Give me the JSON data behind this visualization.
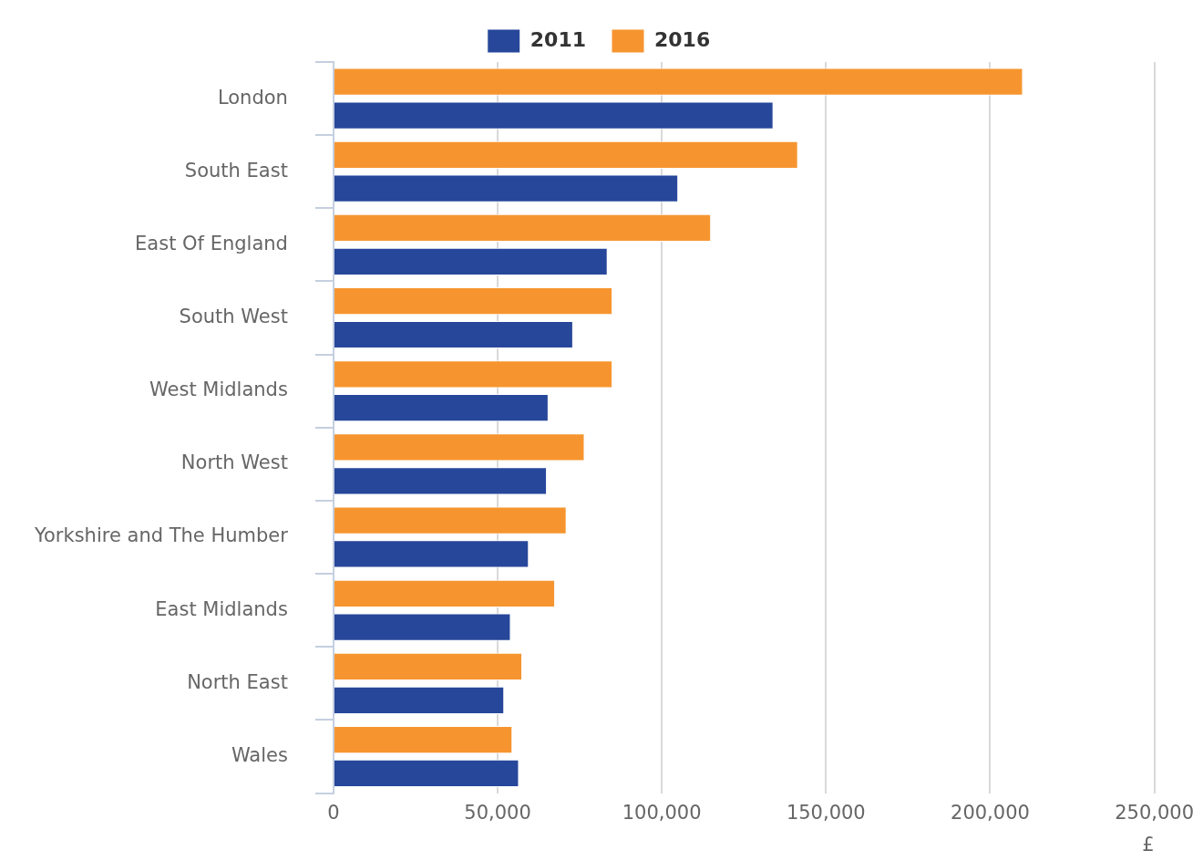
{
  "chart_data": {
    "type": "bar",
    "orientation": "horizontal",
    "xlabel": "£",
    "categories": [
      "London",
      "South East",
      "East Of England",
      "South West",
      "West Midlands",
      "North West",
      "Yorkshire and The Humber",
      "East Midlands",
      "North East",
      "Wales"
    ],
    "series": [
      {
        "name": "2011",
        "color": "#27479a",
        "values": [
          134000,
          105000,
          83500,
          73000,
          65500,
          65000,
          59500,
          54000,
          52000,
          56500
        ]
      },
      {
        "name": "2016",
        "color": "#f6952f",
        "values": [
          210000,
          141500,
          115000,
          85000,
          85000,
          76500,
          71000,
          67500,
          57500,
          54500
        ]
      }
    ],
    "xlim": [
      0,
      250000
    ],
    "xticks": [
      0,
      {
        "value": 50000,
        "label": "50,000"
      },
      {
        "value": 100000,
        "label": "100,000"
      },
      {
        "value": 150000,
        "label": "150,000"
      },
      {
        "value": 200000,
        "label": "200,000"
      },
      {
        "value": 250000,
        "label": "250,000"
      }
    ],
    "grid": "x",
    "legend": "top"
  }
}
